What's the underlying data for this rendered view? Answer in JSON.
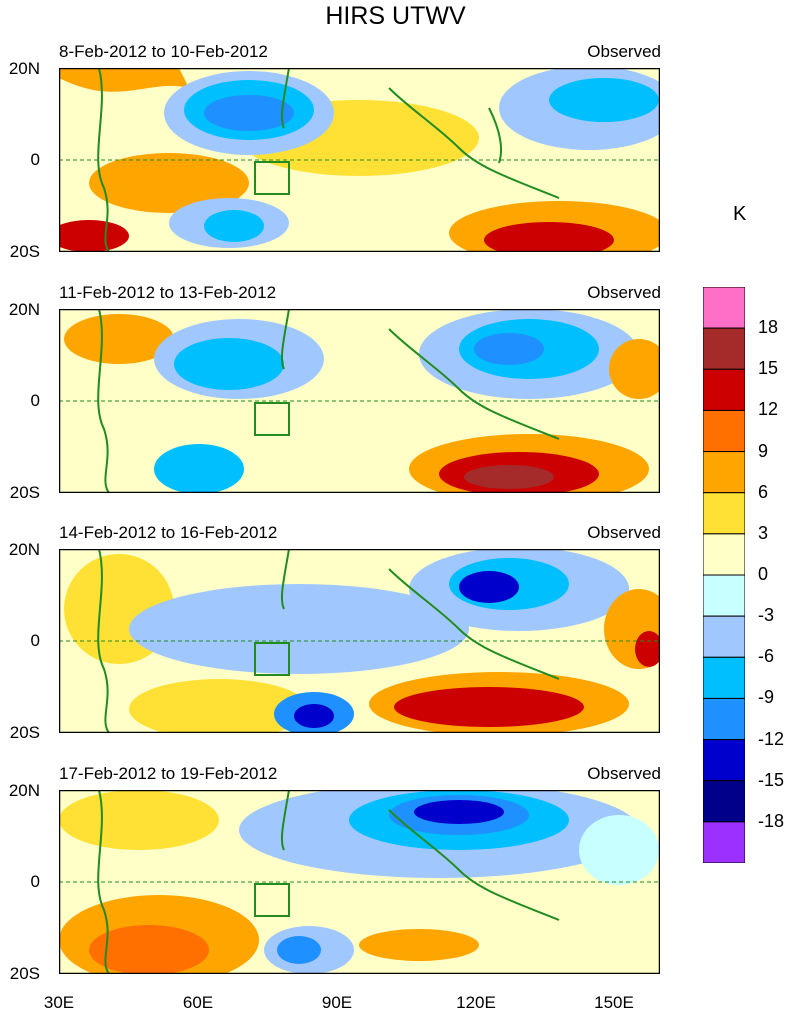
{
  "figure": {
    "title": "HIRS UTWV",
    "unit": "K"
  },
  "panels": [
    {
      "date_range": "8-Feb-2012 to 10-Feb-2012",
      "source": "Observed"
    },
    {
      "date_range": "11-Feb-2012 to 13-Feb-2012",
      "source": "Observed"
    },
    {
      "date_range": "14-Feb-2012 to 16-Feb-2012",
      "source": "Observed"
    },
    {
      "date_range": "17-Feb-2012 to 19-Feb-2012",
      "source": "Observed"
    }
  ],
  "axes": {
    "lat_labels": [
      "20N",
      "0",
      "20S"
    ],
    "lon_labels": [
      "30E",
      "60E",
      "90E",
      "120E",
      "150E"
    ],
    "lon_range": [
      30,
      160
    ],
    "lat_range": [
      -20,
      20
    ]
  },
  "colorbar": {
    "labels": [
      "18",
      "15",
      "12",
      "9",
      "6",
      "3",
      "0",
      "-3",
      "-6",
      "-9",
      "-12",
      "-15",
      "-18"
    ],
    "colors": [
      "#ff6ec7",
      "#a52a2a",
      "#cc0000",
      "#ff7000",
      "#ffa500",
      "#ffe135",
      "#ffffc8",
      "#c8ffff",
      "#a0c8ff",
      "#00bfff",
      "#1e90ff",
      "#0000cd",
      "#00008b",
      "#9b30ff"
    ]
  }
}
